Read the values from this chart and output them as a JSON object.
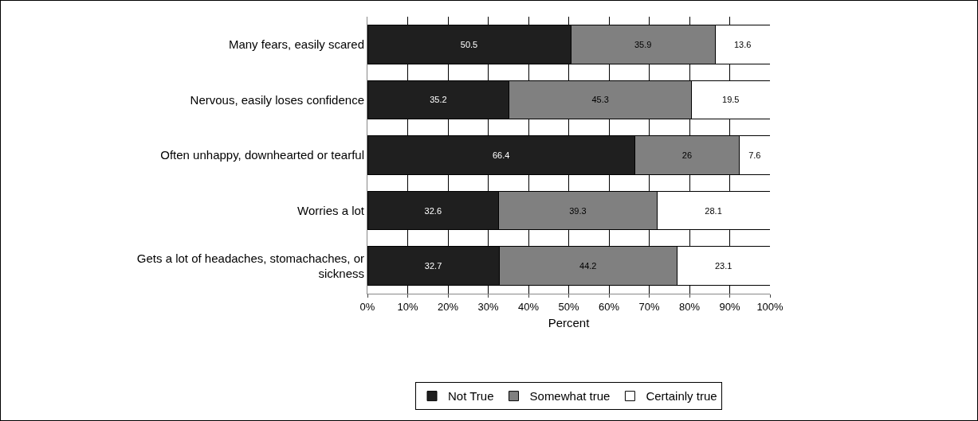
{
  "chart_data": {
    "type": "bar",
    "orientation": "horizontal",
    "stacked": true,
    "xlabel": "Percent",
    "categories": [
      "Many fears, easily scared",
      "Nervous, easily loses confidence",
      "Often unhappy, downhearted or tearful",
      "Worries a lot",
      "Gets a lot of headaches, stomachaches, or sickness"
    ],
    "series": [
      {
        "name": "Not True",
        "color": "#1f1f1f",
        "values": [
          50.5,
          35.2,
          66.4,
          32.6,
          32.7
        ]
      },
      {
        "name": "Somewhat true",
        "color": "#808080",
        "values": [
          35.9,
          45.3,
          26,
          39.3,
          44.2
        ]
      },
      {
        "name": "Certainly true",
        "color": "#ffffff",
        "values": [
          13.6,
          19.5,
          7.6,
          28.1,
          23.1
        ]
      }
    ],
    "xlim": [
      0,
      100
    ],
    "xticks": [
      {
        "value": 0,
        "label": "0%"
      },
      {
        "value": 10,
        "label": "10%"
      },
      {
        "value": 20,
        "label": "20%"
      },
      {
        "value": 30,
        "label": "30%"
      },
      {
        "value": 40,
        "label": "40%"
      },
      {
        "value": 50,
        "label": "50%"
      },
      {
        "value": 60,
        "label": "60%"
      },
      {
        "value": 70,
        "label": "70%"
      },
      {
        "value": 80,
        "label": "80%"
      },
      {
        "value": 90,
        "label": "90%"
      },
      {
        "value": 100,
        "label": "100%"
      }
    ],
    "grid": "x",
    "legend": "bottom",
    "data_labels": true
  }
}
